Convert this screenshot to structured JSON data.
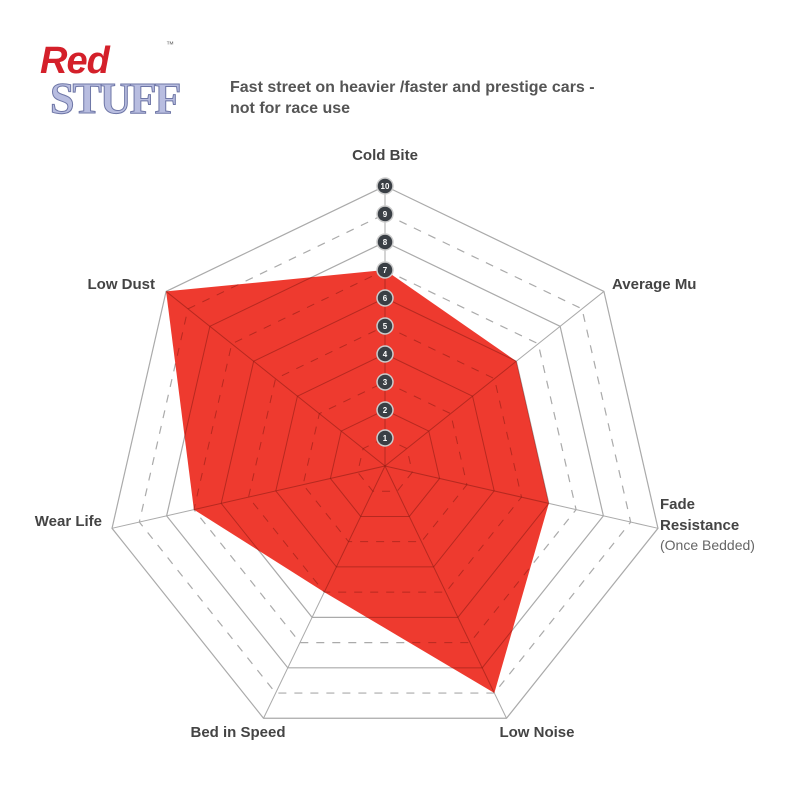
{
  "logo": {
    "line1": "Red",
    "line2": "STUFF",
    "tm": "™"
  },
  "subtitle": [
    "Fast street on heavier /faster and prestige cars -",
    "not for race use"
  ],
  "chart_data": {
    "type": "radar",
    "axes": [
      "Cold Bite",
      "Average Mu",
      "Fade Resistance",
      "Low Noise",
      "Bed in Speed",
      "Wear Life",
      "Low Dust"
    ],
    "axis_sublabels": {
      "Fade Resistance": "(Once Bedded)"
    },
    "values": [
      7,
      6,
      6,
      9,
      5,
      7,
      10
    ],
    "range": [
      0,
      10
    ],
    "tick_labels": [
      "1",
      "2",
      "3",
      "4",
      "5",
      "6",
      "7",
      "8",
      "9",
      "10"
    ],
    "fill_color": "#ee3a2f",
    "grid": true
  }
}
